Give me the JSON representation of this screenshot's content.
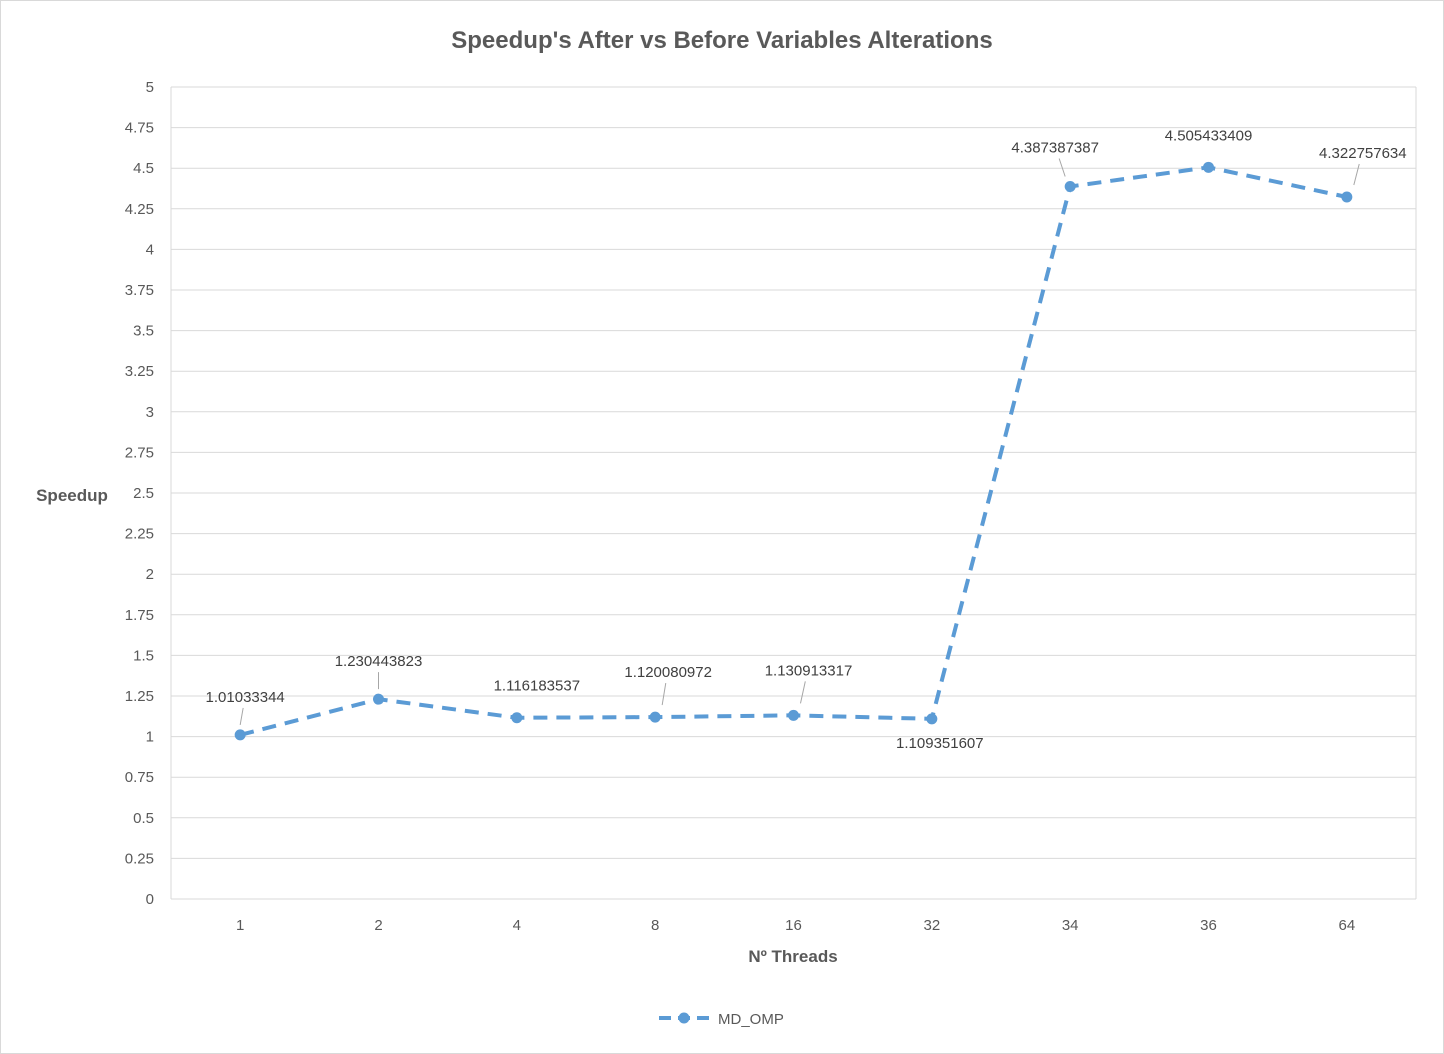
{
  "chart_data": {
    "type": "line",
    "title": "Speedup's After vs Before Variables Alterations",
    "xlabel": "Nº Threads",
    "ylabel": "Speedup",
    "categories": [
      "1",
      "2",
      "4",
      "8",
      "16",
      "32",
      "34",
      "36",
      "64"
    ],
    "series": [
      {
        "name": "MD_OMP",
        "values": [
          1.01033344,
          1.230443823,
          1.116183537,
          1.120080972,
          1.130913317,
          1.109351607,
          4.387387387,
          4.505433409,
          4.322757634
        ],
        "labels": [
          "1.01033344",
          "1.230443823",
          "1.116183537",
          "1.120080972",
          "1.130913317",
          "1.109351607",
          "4.387387387",
          "4.505433409",
          "4.322757634"
        ],
        "color": "#5b9bd5",
        "line_style": "dashed",
        "marker": "circle"
      }
    ],
    "ylim": [
      0,
      5
    ],
    "yticks": [
      0,
      0.25,
      0.5,
      0.75,
      1,
      1.25,
      1.5,
      1.75,
      2,
      2.25,
      2.5,
      2.75,
      3,
      3.25,
      3.5,
      3.75,
      4,
      4.25,
      4.5,
      4.75,
      5
    ],
    "ytick_labels": [
      "0",
      "0.25",
      "0.5",
      "0.75",
      "1",
      "1.25",
      "1.5",
      "1.75",
      "2",
      "2.25",
      "2.5",
      "2.75",
      "3",
      "3.25",
      "3.5",
      "3.75",
      "4",
      "4.25",
      "4.5",
      "4.75",
      "5"
    ],
    "grid": true,
    "legend_position": "bottom",
    "colors": {
      "grid": "#d9d9d9",
      "text": "#595959"
    }
  }
}
